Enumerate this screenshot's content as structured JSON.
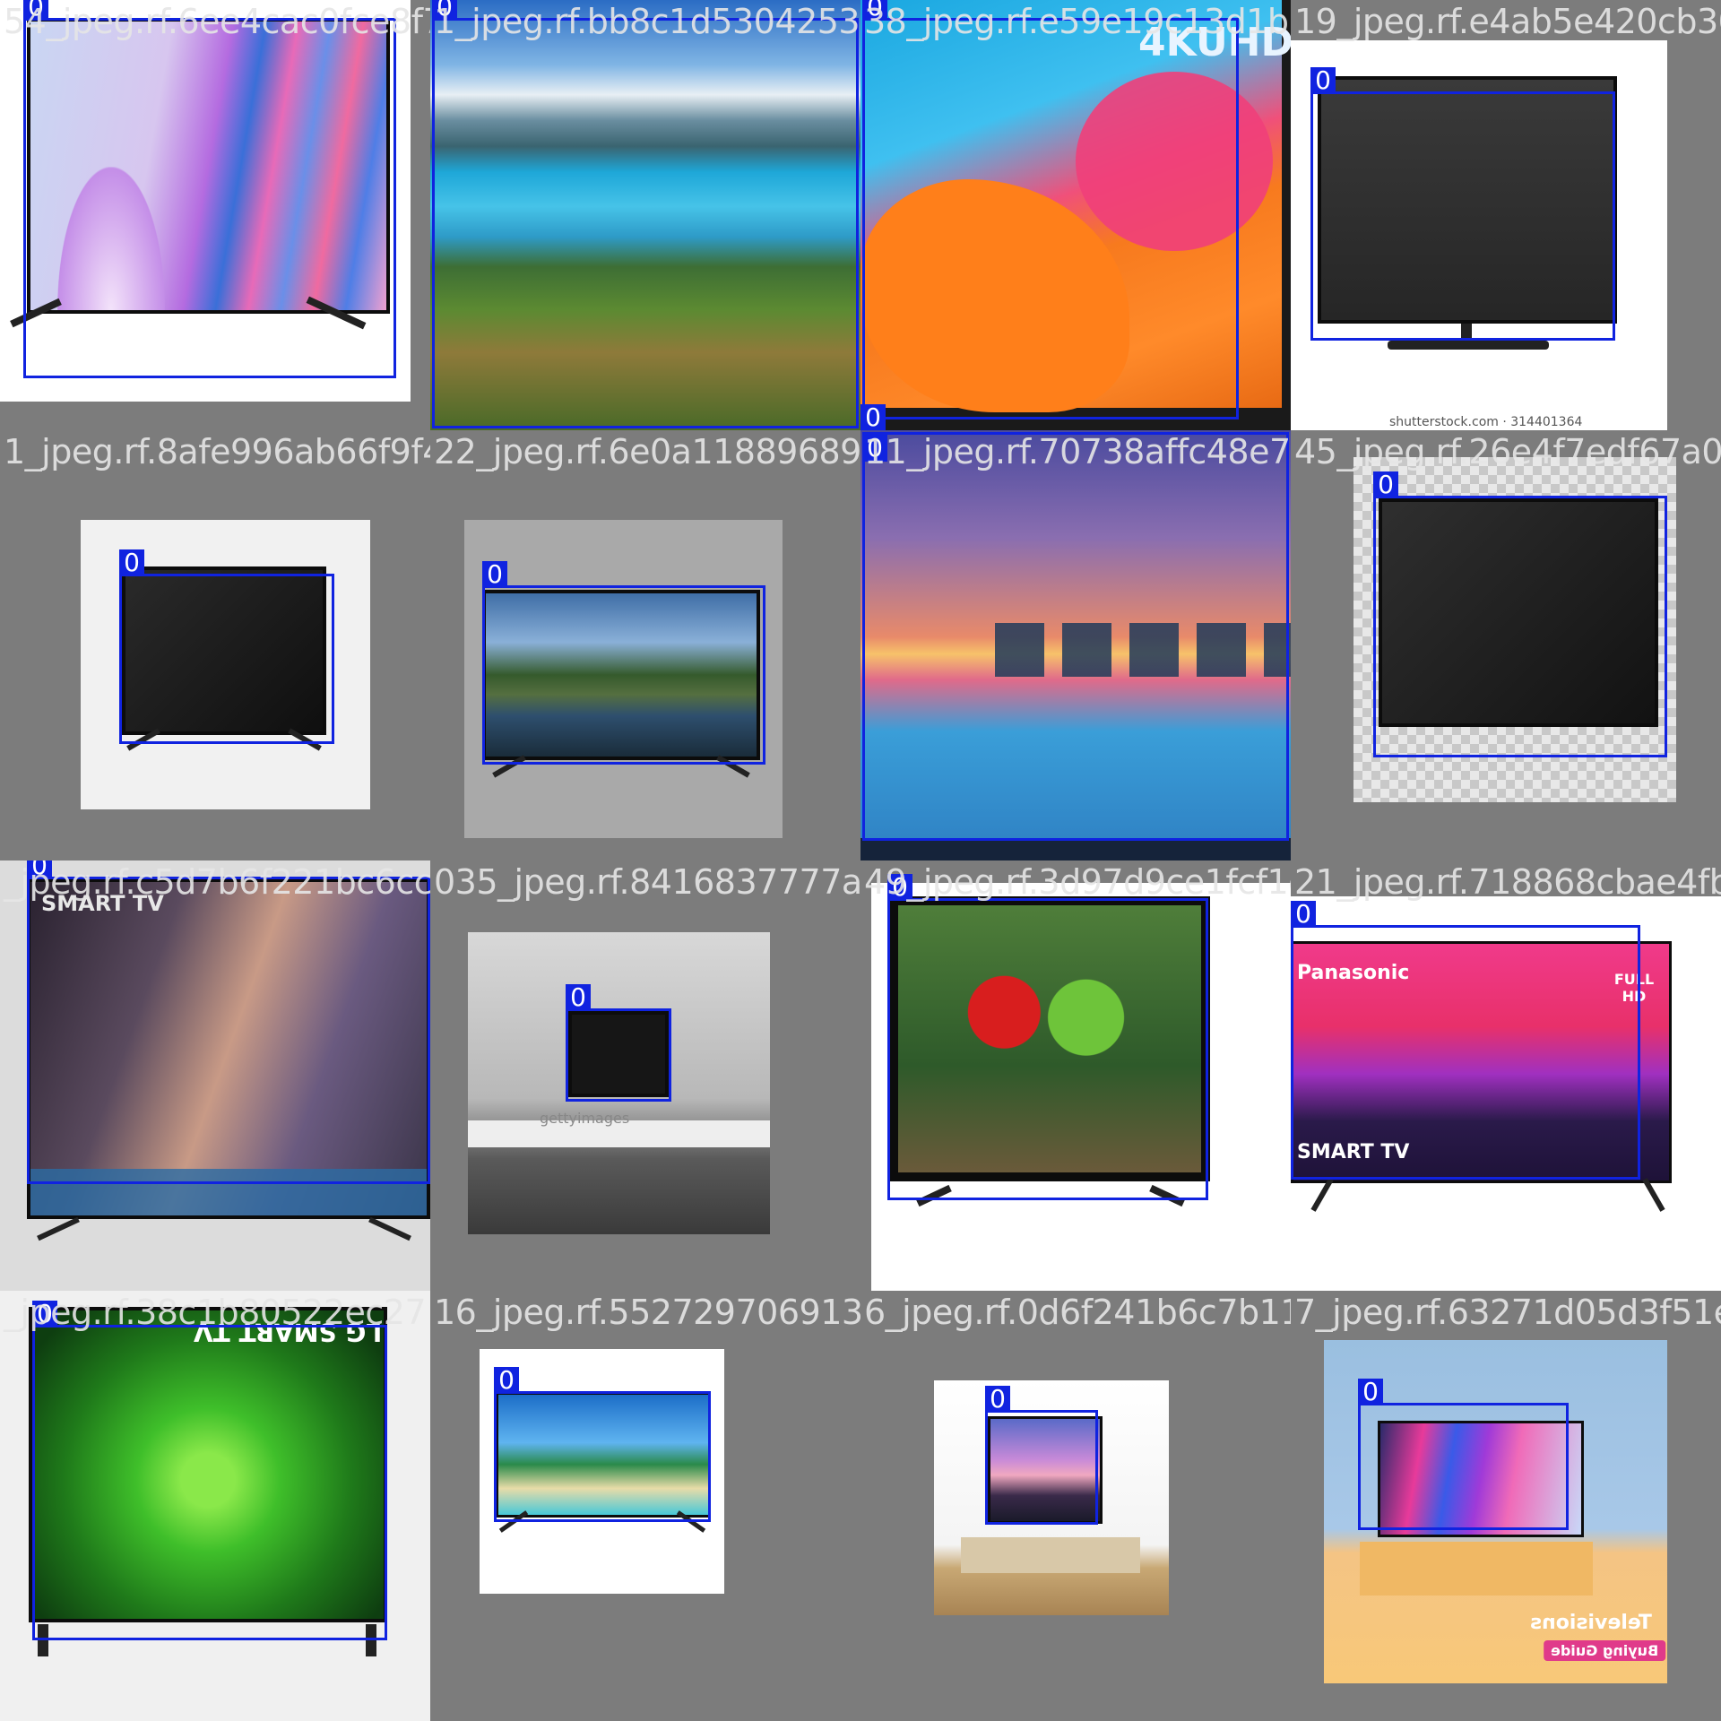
{
  "tiles": [
    {
      "file": "54_jpeg.rf.6ee4cac0fce8f74",
      "label": "0"
    },
    {
      "file": "1_jpeg.rf.bb8c1d530425375056fd665",
      "label": "0"
    },
    {
      "file": "38_jpeg.rf.e59e19c13d1b21317",
      "label": "0",
      "text": "4KUHD",
      "label2": "0"
    },
    {
      "file": "19_jpeg.rf.e4ab5e420cb300094",
      "label": "0",
      "text": "shutterstock.com · 314401364"
    },
    {
      "file": "1_jpeg.rf.8afe996ab66f9f47522",
      "label": "0"
    },
    {
      "file": "22_jpeg.rf.6e0a11889689",
      "label": "0"
    },
    {
      "file": "11_jpeg.rf.70738affc48e73c6",
      "label": "0"
    },
    {
      "file": "45_jpeg.rf.26e4f7edf67a00eb7",
      "label": "0"
    },
    {
      "file": "_jpeg.rf.c5d7b6f221bc6cc",
      "label": "0",
      "text": "SMART TV"
    },
    {
      "file": "035_jpeg.rf.8416837777a651b34",
      "label": "0",
      "text": "gettyimages"
    },
    {
      "file": "49_jpeg.rf.3d97d9ce1fcf1e75fa2",
      "label": "0"
    },
    {
      "file": "21_jpeg.rf.718868cbae4fb0ce",
      "label": "0",
      "text": "Panasonic",
      "text2": "SMART TV",
      "text3": "FULL HD"
    },
    {
      "file": "_jpeg.rf.38c1b80522ec27",
      "label": "0",
      "text": "LG SMART TV"
    },
    {
      "file": "16_jpeg.rf.552729706913c131",
      "label": "0"
    },
    {
      "file": "6_jpeg.rf.0d6f241b6c7b113",
      "label": "0"
    },
    {
      "file": "7_jpeg.rf.63271d05d3f51eb7d1",
      "label": "0",
      "text": "Televisions",
      "text2": "Buying Guide"
    }
  ],
  "colors": {
    "bbox": "#1023e0",
    "background": "#7a7a7a"
  }
}
